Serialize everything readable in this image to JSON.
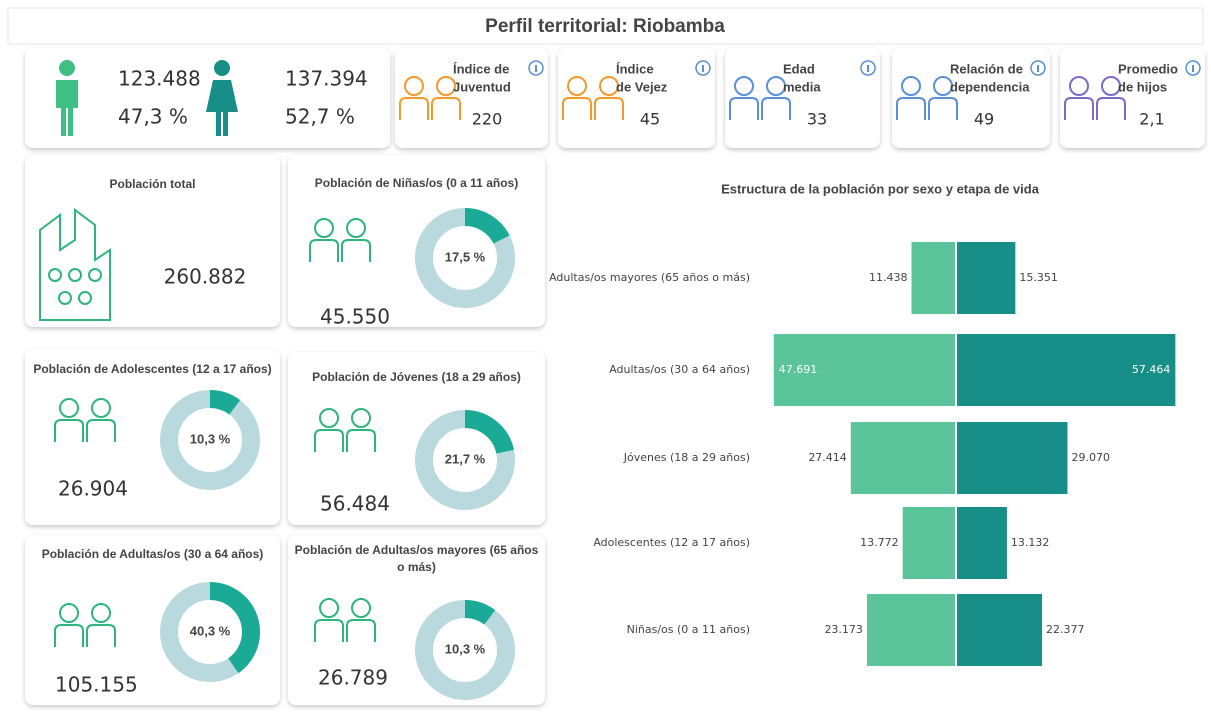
{
  "header": {
    "title": "Perfil territorial: Riobamba"
  },
  "sex": [
    {
      "count": "123.488",
      "share": "47,3 %"
    },
    {
      "count": "137.394",
      "share": "52,7 %"
    }
  ],
  "indicators": [
    {
      "label": [
        "Índice de",
        "Juventud"
      ],
      "value": "220"
    },
    {
      "label": [
        "Índice",
        "de Vejez"
      ],
      "value": "45"
    },
    {
      "label": [
        "Edad",
        "media"
      ],
      "value": "33"
    },
    {
      "label": [
        "Relación de",
        "dependencia"
      ],
      "value": "49"
    },
    {
      "label": [
        "Promedio",
        "de hijos"
      ],
      "value": "2,1"
    }
  ],
  "cards": [
    {
      "title": [
        "Población total"
      ],
      "count": "260.882"
    },
    {
      "title": [
        "Población de Niñas/os (0 a 11 años)"
      ],
      "count": "45.550",
      "share": 17.5,
      "share_label": "17,5 %"
    },
    {
      "title": [
        "Población de Adolescentes (12 a 17 años)"
      ],
      "count": "26.904",
      "share": 10.3,
      "share_label": "10,3 %"
    },
    {
      "title": [
        "Población de Jóvenes (18 a 29 años)"
      ],
      "count": "56.484",
      "share": 21.7,
      "share_label": "21,7 %"
    },
    {
      "title": [
        "Población de Adultas/os (30 a 64 años)"
      ],
      "count": "105.155",
      "share": 40.3,
      "share_label": "40,3 %"
    },
    {
      "title": [
        "Población de Adultas/os mayores (65 años",
        "o más)"
      ],
      "count": "26.789",
      "share": 10.3,
      "share_label": "10,3 %"
    }
  ],
  "chart_data": {
    "type": "butterfly",
    "title": "Estructura de la población por sexo y etapa de vida",
    "categories": [
      "Adultas/os mayores (65 años o más)",
      "Adultas/os (30 a 64 años)",
      "Jóvenes (18 a 29 años)",
      "Adolescentes (12 a 17 años)",
      "Niñas/os (0 a 11 años)"
    ],
    "series": [
      {
        "color": "#5cc49a",
        "values": [
          11438,
          47691,
          27414,
          13772,
          23173
        ],
        "value_labels": [
          "11.438",
          "47.691",
          "27.414",
          "13.772",
          "23.173"
        ]
      },
      {
        "color": "#178e88",
        "values": [
          15351,
          57464,
          29070,
          13132,
          22377
        ],
        "value_labels": [
          "15.351",
          "57.464",
          "29.070",
          "13.132",
          "22.377"
        ]
      }
    ],
    "xlim": [
      0,
      60000
    ]
  }
}
